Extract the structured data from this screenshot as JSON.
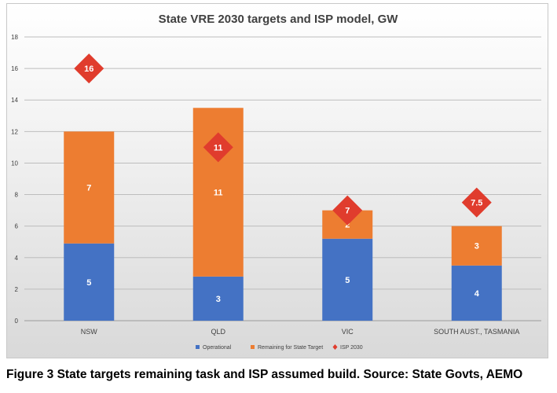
{
  "chart_data": {
    "type": "bar",
    "stacked": true,
    "title": "State VRE 2030 targets and ISP model, GW",
    "categories": [
      "NSW",
      "QLD",
      "VIC",
      "SOUTH AUST., TASMANIA"
    ],
    "series": [
      {
        "name": "Operational",
        "values": [
          4.9,
          2.8,
          5.2,
          3.5
        ],
        "labels": [
          "5",
          "3",
          "5",
          "4"
        ],
        "color": "#4472C4"
      },
      {
        "name": "Remaining for State Target",
        "values": [
          7.1,
          10.7,
          1.8,
          2.5
        ],
        "labels": [
          "7",
          "11",
          "2",
          "3"
        ],
        "color": "#ED7D31"
      }
    ],
    "markers": {
      "name": "ISP 2030",
      "values": [
        16,
        11,
        7,
        7.5
      ],
      "labels": [
        "16",
        "11",
        "7",
        "7.5"
      ],
      "color": "#E03C2D",
      "shape": "diamond"
    },
    "yticks": [
      "0",
      "2",
      "4",
      "6",
      "8",
      "10",
      "12",
      "14",
      "16",
      "18"
    ],
    "ylim": [
      0,
      18
    ],
    "grid": true,
    "legend_position": "bottom"
  },
  "caption": "Figure 3 State targets remaining task and ISP assumed build. Source: State Govts, AEMO"
}
